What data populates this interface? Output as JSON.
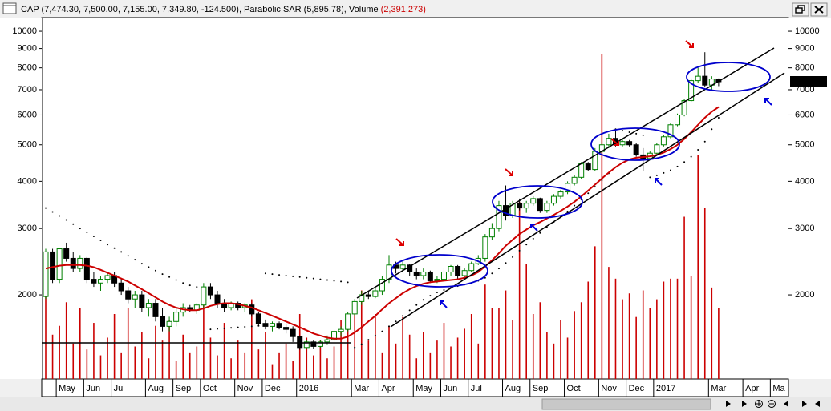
{
  "chart_data": {
    "type": "candlestick",
    "title": "CAP (7,474.30, 7,500.00, 7,155.00, 7,349.80, -124.500), Parabolic SAR (5,895.78), Volume ",
    "volume_label": "(2,391,273)",
    "last_label": "7349.80",
    "log_scale": true,
    "ylim": [
      1197,
      10870
    ],
    "yticks": [
      2000,
      3000,
      4000,
      5000,
      6000,
      7000,
      8000,
      9000,
      10000
    ],
    "y2lim": [
      0,
      12250000
    ],
    "up_color": "#008000",
    "down_color": "#000000",
    "ma_color": "#cc0000",
    "volume_color": "#cc0000",
    "sar_color": "#000000",
    "categories": [
      null,
      null,
      "May",
      null,
      null,
      null,
      "Jun",
      null,
      null,
      null,
      "Jul",
      null,
      null,
      null,
      null,
      "Aug",
      null,
      null,
      null,
      "Sep",
      null,
      null,
      null,
      "Oct",
      null,
      null,
      null,
      null,
      "Nov",
      null,
      null,
      null,
      "Dec",
      null,
      null,
      null,
      null,
      "2016",
      null,
      null,
      null,
      null,
      null,
      null,
      null,
      "Mar",
      null,
      null,
      null,
      "Apr",
      null,
      null,
      null,
      null,
      "May",
      null,
      null,
      null,
      "Jun",
      null,
      null,
      null,
      "Jul",
      null,
      null,
      null,
      null,
      "Aug",
      null,
      null,
      null,
      "Sep",
      null,
      null,
      null,
      null,
      "Oct",
      null,
      null,
      null,
      null,
      "Nov",
      null,
      null,
      null,
      "Dec",
      null,
      null,
      null,
      "2017",
      null,
      null,
      null,
      null,
      null,
      null,
      null,
      "Mar",
      null,
      null,
      null,
      null,
      "Apr",
      null,
      null,
      null,
      "Ma",
      null
    ],
    "ohlc": [
      [
        1980,
        2650,
        1950,
        2600
      ],
      [
        2600,
        2650,
        2150,
        2200
      ],
      [
        2200,
        2650,
        2150,
        2650
      ],
      [
        2650,
        2750,
        2450,
        2500
      ],
      [
        2500,
        2600,
        2300,
        2350
      ],
      [
        2350,
        2550,
        2300,
        2500
      ],
      [
        2500,
        2520,
        2150,
        2200
      ],
      [
        2200,
        2300,
        2100,
        2150
      ],
      [
        2150,
        2250,
        2050,
        2200
      ],
      [
        2200,
        2300,
        2150,
        2250
      ],
      [
        2250,
        2300,
        2100,
        2150
      ],
      [
        2150,
        2200,
        2000,
        2050
      ],
      [
        2050,
        2100,
        1900,
        1950
      ],
      [
        1950,
        2050,
        1850,
        2000
      ],
      [
        2000,
        2050,
        1800,
        1850
      ],
      [
        1850,
        1950,
        1750,
        1900
      ],
      [
        1900,
        1950,
        1700,
        1750
      ],
      [
        1750,
        1850,
        1600,
        1650
      ],
      [
        1650,
        1750,
        1600,
        1700
      ],
      [
        1700,
        1850,
        1650,
        1800
      ],
      [
        1800,
        1900,
        1750,
        1850
      ],
      [
        1850,
        1880,
        1800,
        1820
      ],
      [
        1820,
        1900,
        1780,
        1880
      ],
      [
        1880,
        2150,
        1850,
        2100
      ],
      [
        2100,
        2150,
        1950,
        2000
      ],
      [
        2000,
        2050,
        1850,
        1900
      ],
      [
        1900,
        1950,
        1800,
        1850
      ],
      [
        1850,
        1920,
        1820,
        1900
      ],
      [
        1900,
        1920,
        1820,
        1850
      ],
      [
        1850,
        1900,
        1800,
        1880
      ],
      [
        1880,
        1900,
        1750,
        1780
      ],
      [
        1780,
        1800,
        1650,
        1680
      ],
      [
        1680,
        1720,
        1620,
        1650
      ],
      [
        1650,
        1700,
        1600,
        1680
      ],
      [
        1680,
        1700,
        1620,
        1640
      ],
      [
        1640,
        1680,
        1580,
        1620
      ],
      [
        1620,
        1650,
        1500,
        1550
      ],
      [
        1550,
        1560,
        1430,
        1450
      ],
      [
        1450,
        1520,
        1440,
        1500
      ],
      [
        1500,
        1520,
        1440,
        1460
      ],
      [
        1460,
        1520,
        1450,
        1500
      ],
      [
        1500,
        1560,
        1480,
        1520
      ],
      [
        1520,
        1620,
        1500,
        1600
      ],
      [
        1600,
        1650,
        1550,
        1620
      ],
      [
        1620,
        1800,
        1600,
        1780
      ],
      [
        1780,
        1950,
        1760,
        1920
      ],
      [
        1920,
        2050,
        1880,
        2000
      ],
      [
        2000,
        2050,
        1950,
        1980
      ],
      [
        1980,
        2100,
        1960,
        2050
      ],
      [
        2050,
        2250,
        2000,
        2200
      ],
      [
        2200,
        2550,
        2150,
        2400
      ],
      [
        2400,
        2450,
        2280,
        2350
      ],
      [
        2350,
        2450,
        2300,
        2400
      ],
      [
        2400,
        2420,
        2250,
        2300
      ],
      [
        2300,
        2350,
        2200,
        2250
      ],
      [
        2250,
        2350,
        2200,
        2300
      ],
      [
        2300,
        2320,
        2150,
        2180
      ],
      [
        2180,
        2250,
        2150,
        2200
      ],
      [
        2200,
        2350,
        2180,
        2300
      ],
      [
        2300,
        2400,
        2250,
        2380
      ],
      [
        2380,
        2400,
        2200,
        2250
      ],
      [
        2250,
        2350,
        2200,
        2320
      ],
      [
        2320,
        2450,
        2300,
        2420
      ],
      [
        2420,
        2550,
        2400,
        2500
      ],
      [
        2500,
        2900,
        2450,
        2850
      ],
      [
        2850,
        3100,
        2800,
        3000
      ],
      [
        3000,
        3550,
        2950,
        3450
      ],
      [
        3450,
        3900,
        3150,
        3250
      ],
      [
        3250,
        3550,
        3200,
        3500
      ],
      [
        3500,
        3600,
        3350,
        3400
      ],
      [
        3400,
        3550,
        3300,
        3500
      ],
      [
        3500,
        3650,
        3450,
        3600
      ],
      [
        3600,
        3620,
        3300,
        3350
      ],
      [
        3350,
        3550,
        3300,
        3500
      ],
      [
        3500,
        3700,
        3450,
        3650
      ],
      [
        3650,
        3800,
        3600,
        3750
      ],
      [
        3750,
        4000,
        3700,
        3950
      ],
      [
        3950,
        4150,
        3900,
        4100
      ],
      [
        4100,
        4500,
        4050,
        4450
      ],
      [
        4450,
        4500,
        4250,
        4300
      ],
      [
        4300,
        4900,
        4250,
        4800
      ],
      [
        4800,
        5100,
        4700,
        5000
      ],
      [
        5000,
        5350,
        4900,
        5200
      ],
      [
        5200,
        5450,
        4950,
        5000
      ],
      [
        5000,
        5200,
        4950,
        5100
      ],
      [
        5100,
        5150,
        4950,
        5000
      ],
      [
        5000,
        5050,
        4650,
        4700
      ],
      [
        4700,
        4900,
        4250,
        4600
      ],
      [
        4600,
        4800,
        4550,
        4750
      ],
      [
        4750,
        5050,
        4700,
        5000
      ],
      [
        5000,
        5300,
        4950,
        5250
      ],
      [
        5250,
        5700,
        5200,
        5650
      ],
      [
        5650,
        6050,
        5600,
        6000
      ],
      [
        6000,
        6600,
        5950,
        6550
      ],
      [
        6550,
        7500,
        6500,
        7400
      ],
      [
        7400,
        8000,
        7300,
        7600
      ],
      [
        7600,
        8800,
        7100,
        7200
      ],
      [
        7200,
        7600,
        7000,
        7474.3
      ],
      [
        7474.3,
        7500,
        7155,
        7349.8
      ],
      null,
      null,
      null,
      null,
      null,
      null,
      null,
      null,
      null
    ],
    "volume": [
      3000000,
      1500000,
      1800000,
      2600000,
      1200000,
      2400000,
      1000000,
      1900000,
      800000,
      1400000,
      2200000,
      900000,
      2400000,
      1100000,
      1600000,
      700000,
      1800000,
      1300000,
      2000000,
      600000,
      1500000,
      900000,
      1100000,
      2500000,
      1400000,
      800000,
      1900000,
      700000,
      1300000,
      900000,
      2700000,
      1000000,
      1600000,
      500000,
      900000,
      1200000,
      600000,
      2200000,
      1400000,
      800000,
      1300000,
      700000,
      1100000,
      2000000,
      1700000,
      2400000,
      3000000,
      1300000,
      2200000,
      900000,
      1800000,
      1200000,
      2100000,
      1500000,
      700000,
      1600000,
      900000,
      1300000,
      1900000,
      1100000,
      1400000,
      1700000,
      2200000,
      1200000,
      3200000,
      2400000,
      2400000,
      3000000,
      2000000,
      6000000,
      3900000,
      2200000,
      2600000,
      1600000,
      1200000,
      2000000,
      1400000,
      2300000,
      2600000,
      3300000,
      4500000,
      11000000,
      3800000,
      3400000,
      2700000,
      2900000,
      2100000,
      3000000,
      2400000,
      2700000,
      3300000,
      3400000,
      3400000,
      5500000,
      3500000,
      7600000,
      5800000,
      3100000,
      2391273,
      null,
      null,
      null,
      null,
      null,
      null,
      null,
      null,
      null
    ],
    "ma": [
      2350,
      2370,
      2390,
      2400,
      2400,
      2400,
      2390,
      2370,
      2330,
      2290,
      2250,
      2210,
      2170,
      2120,
      2070,
      2020,
      1970,
      1920,
      1880,
      1850,
      1830,
      1820,
      1820,
      1840,
      1870,
      1890,
      1900,
      1900,
      1890,
      1870,
      1850,
      1820,
      1790,
      1760,
      1730,
      1700,
      1670,
      1640,
      1610,
      1580,
      1560,
      1540,
      1530,
      1530,
      1550,
      1590,
      1640,
      1700,
      1760,
      1830,
      1900,
      1960,
      2020,
      2070,
      2110,
      2140,
      2160,
      2170,
      2180,
      2190,
      2200,
      2220,
      2250,
      2300,
      2380,
      2470,
      2580,
      2700,
      2800,
      2900,
      2980,
      3060,
      3120,
      3190,
      3260,
      3340,
      3430,
      3530,
      3650,
      3780,
      3920,
      4070,
      4220,
      4360,
      4480,
      4570,
      4620,
      4640,
      4660,
      4700,
      4770,
      4870,
      5000,
      5180,
      5400,
      5650,
      5900,
      6120,
      6300,
      null,
      null,
      null,
      null,
      null,
      null,
      null,
      null,
      null
    ],
    "sar": [
      3400,
      3320,
      3240,
      3160,
      3080,
      3000,
      2930,
      2860,
      2790,
      2720,
      2660,
      2600,
      2540,
      2480,
      2420,
      2370,
      2320,
      2270,
      2230,
      2190,
      2150,
      2120,
      2100,
      2080,
      1620,
      1625,
      1630,
      1635,
      1640,
      1645,
      1650,
      1655,
      2280,
      2270,
      2260,
      2250,
      2240,
      2230,
      2220,
      2210,
      2200,
      2190,
      2180,
      2170,
      2160,
      1450,
      1480,
      1520,
      1560,
      1600,
      1650,
      1700,
      1760,
      1820,
      1880,
      1940,
      1990,
      2030,
      2060,
      2090,
      2110,
      2130,
      2150,
      2180,
      2220,
      2280,
      2350,
      2430,
      2520,
      2620,
      2720,
      2820,
      2920,
      3020,
      3120,
      3220,
      3330,
      3450,
      3580,
      3720,
      3870,
      4030,
      4200,
      5500,
      5450,
      5400,
      5350,
      5300,
      4100,
      4150,
      4210,
      4280,
      4380,
      4500,
      4650,
      4850,
      5100,
      5500,
      5895.78,
      null,
      null,
      null,
      null,
      null,
      null,
      null,
      null,
      null
    ]
  }
}
